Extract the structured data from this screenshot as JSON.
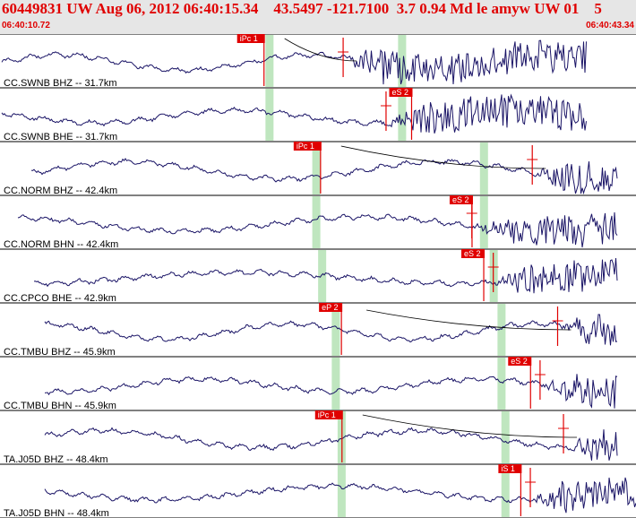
{
  "header": {
    "title": "60449831 UW Aug 06, 2012 06:40:15.34    43.5497 -121.7100  3.7 0.94 Md le amyw UW 01    5",
    "start_time": "06:40:10.72",
    "end_time": "06:40:43.34"
  },
  "colors": {
    "trace": "#1a1466",
    "pick": "#e00000",
    "window": "#bfe6bf",
    "header_bg": "#e6e6e6",
    "header_text": "#e00000"
  },
  "traces": [
    {
      "label": "CC.SWNB BHZ -- 31.7km",
      "pick_label": "iPc 1",
      "pick_time": 12.3,
      "onset": 17.6,
      "trend": "down",
      "window_times": [
        13.8,
        20.6
      ]
    },
    {
      "label": "CC.SWNB BHE -- 31.7km",
      "pick_label": "eS 2",
      "pick_time": 20.1,
      "onset": 19.8,
      "window_times": [
        13.8,
        20.6
      ]
    },
    {
      "label": "CC.NORM BHZ -- 42.4km",
      "pick_label": "iPc 1",
      "pick_time": 15.2,
      "onset": 27.3,
      "trend": "down",
      "window_times": [
        16.2,
        24.8
      ]
    },
    {
      "label": "CC.NORM BHN -- 42.4km",
      "pick_label": "eS 2",
      "pick_time": 23.2,
      "onset": 24.2,
      "window_times": [
        16.2,
        24.8
      ]
    },
    {
      "label": "CC.CPCO BHE -- 42.9km",
      "pick_label": "eS 2",
      "pick_time": 23.8,
      "onset": 25.3,
      "window_times": [
        16.5,
        25.3
      ]
    },
    {
      "label": "CC.TMBU BHZ -- 45.9km",
      "pick_label": "eP 2",
      "pick_time": 16.5,
      "onset": 28.6,
      "trend": "up",
      "window_times": [
        17.2,
        25.7
      ]
    },
    {
      "label": "CC.TMBU BHN -- 45.9km",
      "pick_label": "eS 2",
      "pick_time": 26.2,
      "onset": 27.7,
      "window_times": [
        17.2,
        25.7
      ]
    },
    {
      "label": "TA.J05D BHZ -- 48.4km",
      "pick_label": "iPc 1",
      "pick_time": 16.3,
      "onset": 28.9,
      "trend": "down",
      "window_times": [
        17.5,
        25.9
      ]
    },
    {
      "label": "TA.J05D BHN -- 48.4km",
      "pick_label": "iS 1",
      "pick_time": 25.7,
      "onset": 27.2,
      "window_times": [
        17.5,
        25.9
      ]
    }
  ]
}
